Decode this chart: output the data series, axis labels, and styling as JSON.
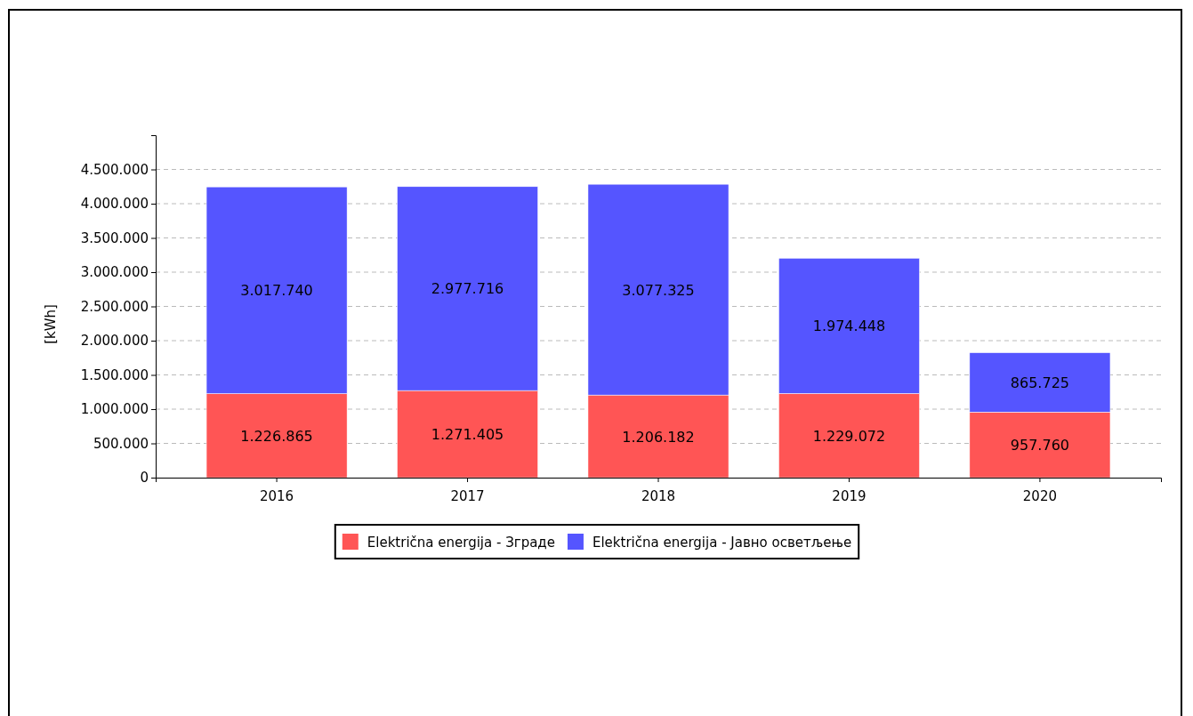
{
  "chart_data": {
    "type": "bar",
    "stacked": true,
    "ylabel": "[kWh]",
    "categories": [
      "2016",
      "2017",
      "2018",
      "2019",
      "2020"
    ],
    "series": [
      {
        "name": "Električna energija - Зграде",
        "color": "#ff5555",
        "values": [
          1226865,
          1271405,
          1206182,
          1229072,
          957760
        ],
        "value_labels": [
          "1.226.865",
          "1.271.405",
          "1.206.182",
          "1.229.072",
          "957.760"
        ]
      },
      {
        "name": "Električna energija - Јавно осветљење",
        "color": "#5555ff",
        "values": [
          3017740,
          2977716,
          3077325,
          1974448,
          865725
        ],
        "value_labels": [
          "3.017.740",
          "2.977.716",
          "3.077.325",
          "1.974.448",
          "865.725"
        ]
      }
    ],
    "ylim": [
      0,
      5000000
    ],
    "yticks": [
      {
        "value": 0,
        "label": "0"
      },
      {
        "value": 500000,
        "label": "500.000"
      },
      {
        "value": 1000000,
        "label": "1.000.000"
      },
      {
        "value": 1500000,
        "label": "1.500.000"
      },
      {
        "value": 2000000,
        "label": "2.000.000"
      },
      {
        "value": 2500000,
        "label": "2.500.000"
      },
      {
        "value": 3000000,
        "label": "3.000.000"
      },
      {
        "value": 3500000,
        "label": "3.500.000"
      },
      {
        "value": 4000000,
        "label": "4.000.000"
      },
      {
        "value": 4500000,
        "label": "4.500.000"
      }
    ],
    "grid": "y",
    "legend": "bottom"
  }
}
